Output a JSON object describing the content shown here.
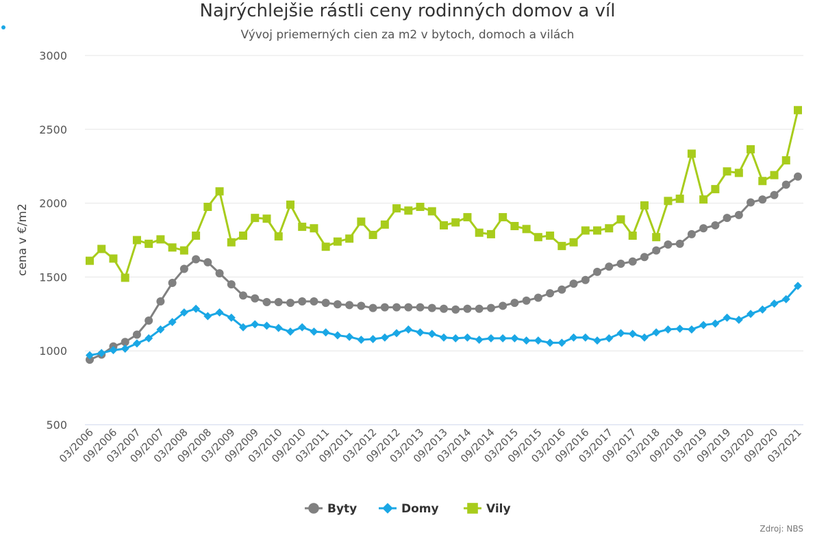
{
  "chart_data": {
    "type": "line",
    "title": "Najrýchlejšie rástli ceny rodinných domov a víl",
    "subtitle": "Vývoj priemerných cien za m2 v bytoch, domoch a vilách",
    "ylabel": "cena v €/m2",
    "ylim": [
      500,
      3000
    ],
    "yticks": [
      "3000",
      "2500",
      "2000",
      "1500",
      "1000",
      "500"
    ],
    "source": "Zdroj: NBS",
    "x_labels": [
      "03/2006",
      "09/2006",
      "03/2007",
      "09/2007",
      "03/2008",
      "09/2008",
      "03/2009",
      "09/2009",
      "03/2010",
      "09/2010",
      "03/2011",
      "09/2011",
      "03/2012",
      "09/2012",
      "03/2013",
      "09/2013",
      "03/2014",
      "09/2014",
      "03/2015",
      "09/2015",
      "03/2016",
      "09/2016",
      "03/2017",
      "09/2017",
      "03/2018",
      "09/2018",
      "03/2019",
      "09/2019",
      "03/2020",
      "09/2020",
      "03/2021"
    ],
    "grid": true,
    "legend_position": "bottom-center",
    "series": [
      {
        "name": "Byty",
        "color": "#808080",
        "marker": "circle",
        "values": [
          940,
          975,
          1030,
          1060,
          1110,
          1205,
          1335,
          1460,
          1555,
          1620,
          1600,
          1525,
          1450,
          1375,
          1355,
          1330,
          1330,
          1325,
          1335,
          1335,
          1325,
          1315,
          1310,
          1305,
          1290,
          1295,
          1295,
          1295,
          1295,
          1290,
          1285,
          1280,
          1285,
          1285,
          1290,
          1305,
          1325,
          1340,
          1360,
          1390,
          1415,
          1455,
          1480,
          1535,
          1570,
          1590,
          1605,
          1635,
          1680,
          1720,
          1725,
          1790,
          1830,
          1850,
          1900,
          1920,
          2005,
          2025,
          2055,
          2125,
          2180
        ]
      },
      {
        "name": "Domy",
        "color": "#1aa7e5",
        "marker": "diamond",
        "values": [
          970,
          985,
          1005,
          1015,
          1050,
          1085,
          1145,
          1195,
          1260,
          1285,
          1235,
          1260,
          1225,
          1160,
          1180,
          1170,
          1155,
          1130,
          1160,
          1130,
          1125,
          1105,
          1095,
          1075,
          1080,
          1090,
          1120,
          1145,
          1125,
          1115,
          1090,
          1085,
          1090,
          1075,
          1085,
          1085,
          1085,
          1070,
          1070,
          1055,
          1055,
          1090,
          1090,
          1070,
          1085,
          1120,
          1115,
          1090,
          1125,
          1145,
          1150,
          1145,
          1175,
          1185,
          1225,
          1210,
          1250,
          1280,
          1320,
          1350,
          1440
        ]
      },
      {
        "name": "Vily",
        "color": "#a8cc1c",
        "marker": "square",
        "values": [
          1610,
          1690,
          1625,
          1495,
          1750,
          1725,
          1755,
          1700,
          1680,
          1780,
          1975,
          2080,
          1735,
          1780,
          1900,
          1895,
          1775,
          1990,
          1840,
          1830,
          1705,
          1740,
          1760,
          1875,
          1785,
          1855,
          1965,
          1950,
          1975,
          1945,
          1850,
          1870,
          1905,
          1800,
          1790,
          1905,
          1845,
          1825,
          1770,
          1780,
          1710,
          1735,
          1815,
          1815,
          1830,
          1890,
          1780,
          1985,
          1770,
          2015,
          2030,
          2335,
          2025,
          2095,
          2215,
          2205,
          2365,
          2150,
          2190,
          2290,
          2630
        ]
      }
    ]
  }
}
